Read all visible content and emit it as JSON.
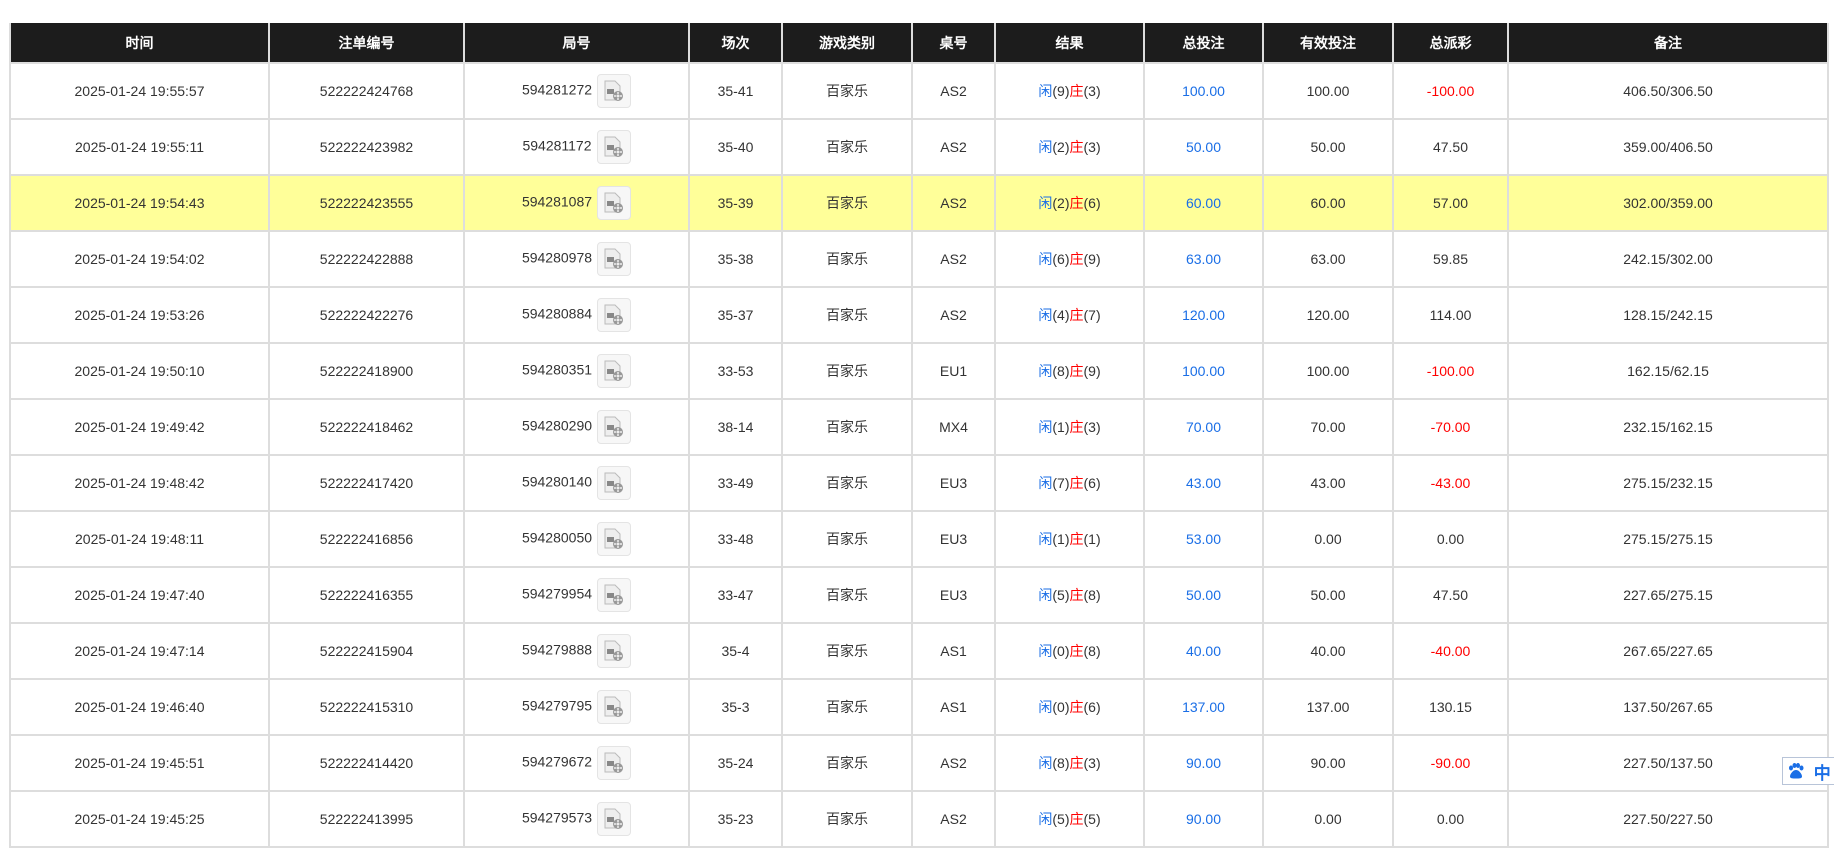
{
  "headers": [
    "时间",
    "注单编号",
    "局号",
    "场次",
    "游戏类别",
    "桌号",
    "结果",
    "总投注",
    "有效投注",
    "总派彩",
    "备注"
  ],
  "player_label": "闲",
  "banker_label": "庄",
  "colors": {
    "header_bg": "#1c1c1c",
    "highlight": "#ffff99",
    "blue": "#1a6ee6",
    "red": "#ff0000"
  },
  "rows": [
    [
      "2025-01-24 19:55:57",
      "522222424768",
      "594281272",
      "35-41",
      "百家乐",
      "AS2",
      "(9)",
      "(3)",
      "100.00",
      "100.00",
      "-100.00",
      "406.50/306.50"
    ],
    [
      "2025-01-24 19:55:11",
      "522222423982",
      "594281172",
      "35-40",
      "百家乐",
      "AS2",
      "(2)",
      "(3)",
      "50.00",
      "50.00",
      "47.50",
      "359.00/406.50"
    ],
    [
      "2025-01-24 19:54:43",
      "522222423555",
      "594281087",
      "35-39",
      "百家乐",
      "AS2",
      "(2)",
      "(6)",
      "60.00",
      "60.00",
      "57.00",
      "302.00/359.00"
    ],
    [
      "2025-01-24 19:54:02",
      "522222422888",
      "594280978",
      "35-38",
      "百家乐",
      "AS2",
      "(6)",
      "(9)",
      "63.00",
      "63.00",
      "59.85",
      "242.15/302.00"
    ],
    [
      "2025-01-24 19:53:26",
      "522222422276",
      "594280884",
      "35-37",
      "百家乐",
      "AS2",
      "(4)",
      "(7)",
      "120.00",
      "120.00",
      "114.00",
      "128.15/242.15"
    ],
    [
      "2025-01-24 19:50:10",
      "522222418900",
      "594280351",
      "33-53",
      "百家乐",
      "EU1",
      "(8)",
      "(9)",
      "100.00",
      "100.00",
      "-100.00",
      "162.15/62.15"
    ],
    [
      "2025-01-24 19:49:42",
      "522222418462",
      "594280290",
      "38-14",
      "百家乐",
      "MX4",
      "(1)",
      "(3)",
      "70.00",
      "70.00",
      "-70.00",
      "232.15/162.15"
    ],
    [
      "2025-01-24 19:48:42",
      "522222417420",
      "594280140",
      "33-49",
      "百家乐",
      "EU3",
      "(7)",
      "(6)",
      "43.00",
      "43.00",
      "-43.00",
      "275.15/232.15"
    ],
    [
      "2025-01-24 19:48:11",
      "522222416856",
      "594280050",
      "33-48",
      "百家乐",
      "EU3",
      "(1)",
      "(1)",
      "53.00",
      "0.00",
      "0.00",
      "275.15/275.15"
    ],
    [
      "2025-01-24 19:47:40",
      "522222416355",
      "594279954",
      "33-47",
      "百家乐",
      "EU3",
      "(5)",
      "(8)",
      "50.00",
      "50.00",
      "47.50",
      "227.65/275.15"
    ],
    [
      "2025-01-24 19:47:14",
      "522222415904",
      "594279888",
      "35-4",
      "百家乐",
      "AS1",
      "(0)",
      "(8)",
      "40.00",
      "40.00",
      "-40.00",
      "267.65/227.65"
    ],
    [
      "2025-01-24 19:46:40",
      "522222415310",
      "594279795",
      "35-3",
      "百家乐",
      "AS1",
      "(0)",
      "(6)",
      "137.00",
      "137.00",
      "130.15",
      "137.50/267.65"
    ],
    [
      "2025-01-24 19:45:51",
      "522222414420",
      "594279672",
      "35-24",
      "百家乐",
      "AS2",
      "(8)",
      "(3)",
      "90.00",
      "90.00",
      "-90.00",
      "227.50/137.50"
    ],
    [
      "2025-01-24 19:45:25",
      "522222413995",
      "594279573",
      "35-23",
      "百家乐",
      "AS2",
      "(5)",
      "(5)",
      "90.00",
      "0.00",
      "0.00",
      "227.50/227.50"
    ]
  ],
  "highlight_row": 2,
  "ime": {
    "label": "中",
    "icon": "paw-icon"
  }
}
